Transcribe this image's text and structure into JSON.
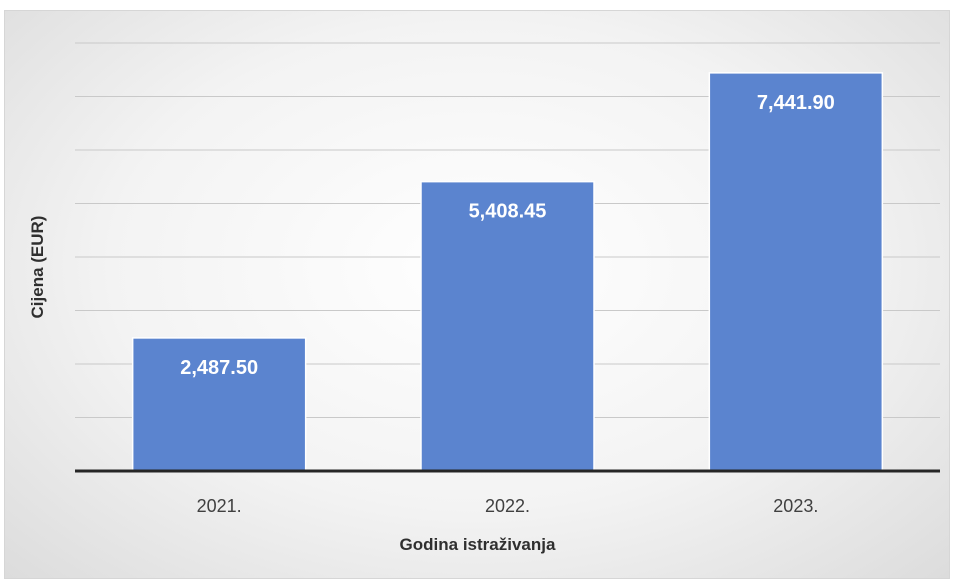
{
  "chart_data": {
    "type": "bar",
    "title": "",
    "xlabel": "Godina istraživanja",
    "ylabel": "Cijena (EUR)",
    "categories": [
      "2021.",
      "2022.",
      "2023."
    ],
    "values": [
      2487.5,
      5408.45,
      7441.9
    ],
    "data_labels": [
      "2,487.50",
      "5,408.45",
      "7,441.90"
    ],
    "ylim": [
      0,
      8000
    ],
    "grid": true,
    "legend": "none",
    "colors": {
      "bar": "#5b84cf",
      "axis": "#262626",
      "grid": "#c9c9c9"
    }
  }
}
